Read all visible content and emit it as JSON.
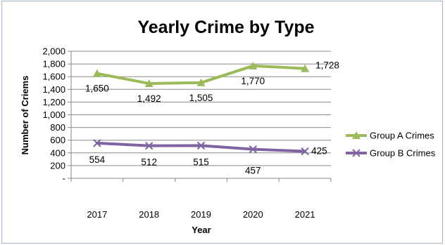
{
  "chart_data": {
    "type": "line",
    "title": "Yearly Crime by Type",
    "xlabel": "Year",
    "ylabel": "Number of Criems",
    "categories": [
      "2017",
      "2018",
      "2019",
      "2020",
      "2021"
    ],
    "ylim": [
      0,
      2000
    ],
    "yticks": [
      "-",
      "200",
      "400",
      "600",
      "800",
      "1,000",
      "1,200",
      "1,400",
      "1,600",
      "1,800",
      "2,000"
    ],
    "grid": true,
    "legend_position": "right",
    "series": [
      {
        "name": "Group A Crimes",
        "values": [
          1650,
          1492,
          1505,
          1770,
          1728
        ],
        "labels": [
          "1,650",
          "1,492",
          "1,505",
          "1,770",
          "1,728"
        ],
        "color": "#9bbb59",
        "marker": "triangle"
      },
      {
        "name": "Group B Crimes",
        "values": [
          554,
          512,
          515,
          457,
          425
        ],
        "labels": [
          "554",
          "512",
          "515",
          "457",
          "425"
        ],
        "color": "#8064a2",
        "marker": "x"
      }
    ]
  }
}
